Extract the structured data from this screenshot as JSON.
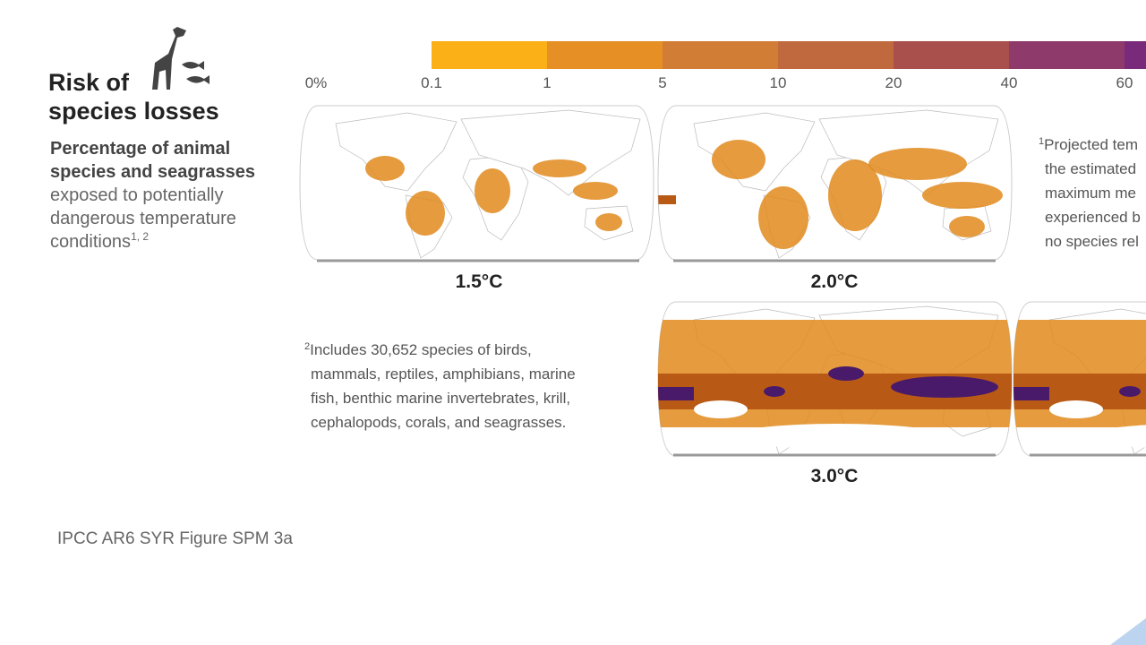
{
  "header": {
    "title_lines": [
      "Risk of",
      "species losses"
    ],
    "subtitle_bold_lines": [
      "Percentage of animal",
      "species and seagrasses"
    ],
    "subtitle_lines": [
      "exposed to potentially",
      "dangerous temperature",
      "conditions"
    ],
    "subtitle_note": "1, 2"
  },
  "scale": {
    "labels": [
      "0%",
      "0.1",
      "1",
      "5",
      "10",
      "20",
      "40",
      "60"
    ],
    "colors": [
      "#ffffff",
      "#fbb018",
      "#e58f25",
      "#d27d35",
      "#c0693f",
      "#a9504c",
      "#8e3a6a",
      "#7a2a7a"
    ]
  },
  "maps": [
    {
      "label": "1.5°C"
    },
    {
      "label": "2.0°C"
    },
    {
      "label": "3.0°C"
    }
  ],
  "footnote1": {
    "mark": "1",
    "lines": [
      "Projected tem",
      "the estimated",
      "maximum me",
      "experienced b",
      "no species rel"
    ]
  },
  "footnote2": {
    "mark": "2",
    "lines": [
      "Includes 30,652 species of birds,",
      "mammals, reptiles, amphibians, marine",
      "fish, benthic marine invertebrates, krill,",
      "cephalopods, corals, and seagrasses."
    ]
  },
  "source": "IPCC AR6 SYR Figure SPM 3a"
}
